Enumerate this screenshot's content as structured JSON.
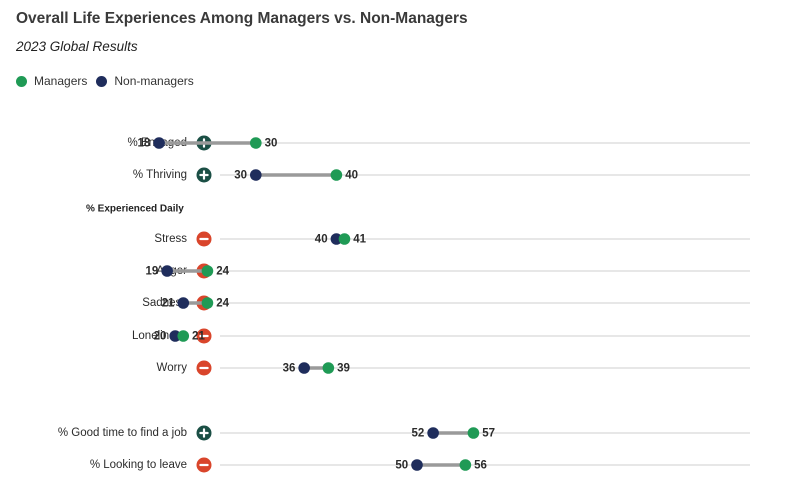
{
  "title": "Overall Life Experiences Among Managers vs. Non-Managers",
  "subtitle": "2023 Global Results",
  "legend": [
    {
      "label": "Managers",
      "color": "#1f9a55"
    },
    {
      "label": "Non-managers",
      "color": "#1f2d5c"
    }
  ],
  "colors": {
    "managers": "#1f9a55",
    "non_managers": "#1f2d5c",
    "positive_badge": "#1b4f45",
    "negative_badge": "#d9452b",
    "connector": "#9a9a9a",
    "guide": "#cfcfcf"
  },
  "chart_data": {
    "type": "dumbbell",
    "title": "Overall Life Experiences Among Managers vs. Non-Managers",
    "subtitle": "2023 Global Results",
    "xlim": [
      0,
      100
    ],
    "grid": false,
    "legend_position": "top-left",
    "series": [
      {
        "name": "Managers",
        "key": "managers"
      },
      {
        "name": "Non-managers",
        "key": "non_managers"
      }
    ],
    "section_labels": [
      {
        "label": "% Experienced Daily",
        "before_row": "Stress"
      }
    ],
    "rows": [
      {
        "label": "% Engaged",
        "sign": "plus",
        "managers": 30,
        "non_managers": 18
      },
      {
        "label": "% Thriving",
        "sign": "plus",
        "managers": 40,
        "non_managers": 30
      },
      {
        "label": "Stress",
        "sign": "minus",
        "managers": 41,
        "non_managers": 40
      },
      {
        "label": "Anger",
        "sign": "minus",
        "managers": 24,
        "non_managers": 19
      },
      {
        "label": "Sadness",
        "sign": "minus",
        "managers": 24,
        "non_managers": 21
      },
      {
        "label": "Loneliness",
        "sign": "minus",
        "managers": 21,
        "non_managers": 20
      },
      {
        "label": "Worry",
        "sign": "minus",
        "managers": 39,
        "non_managers": 36
      },
      {
        "label": "% Good time to find a job",
        "sign": "plus",
        "managers": 57,
        "non_managers": 52
      },
      {
        "label": "% Looking to leave",
        "sign": "minus",
        "managers": 56,
        "non_managers": 50
      }
    ]
  }
}
